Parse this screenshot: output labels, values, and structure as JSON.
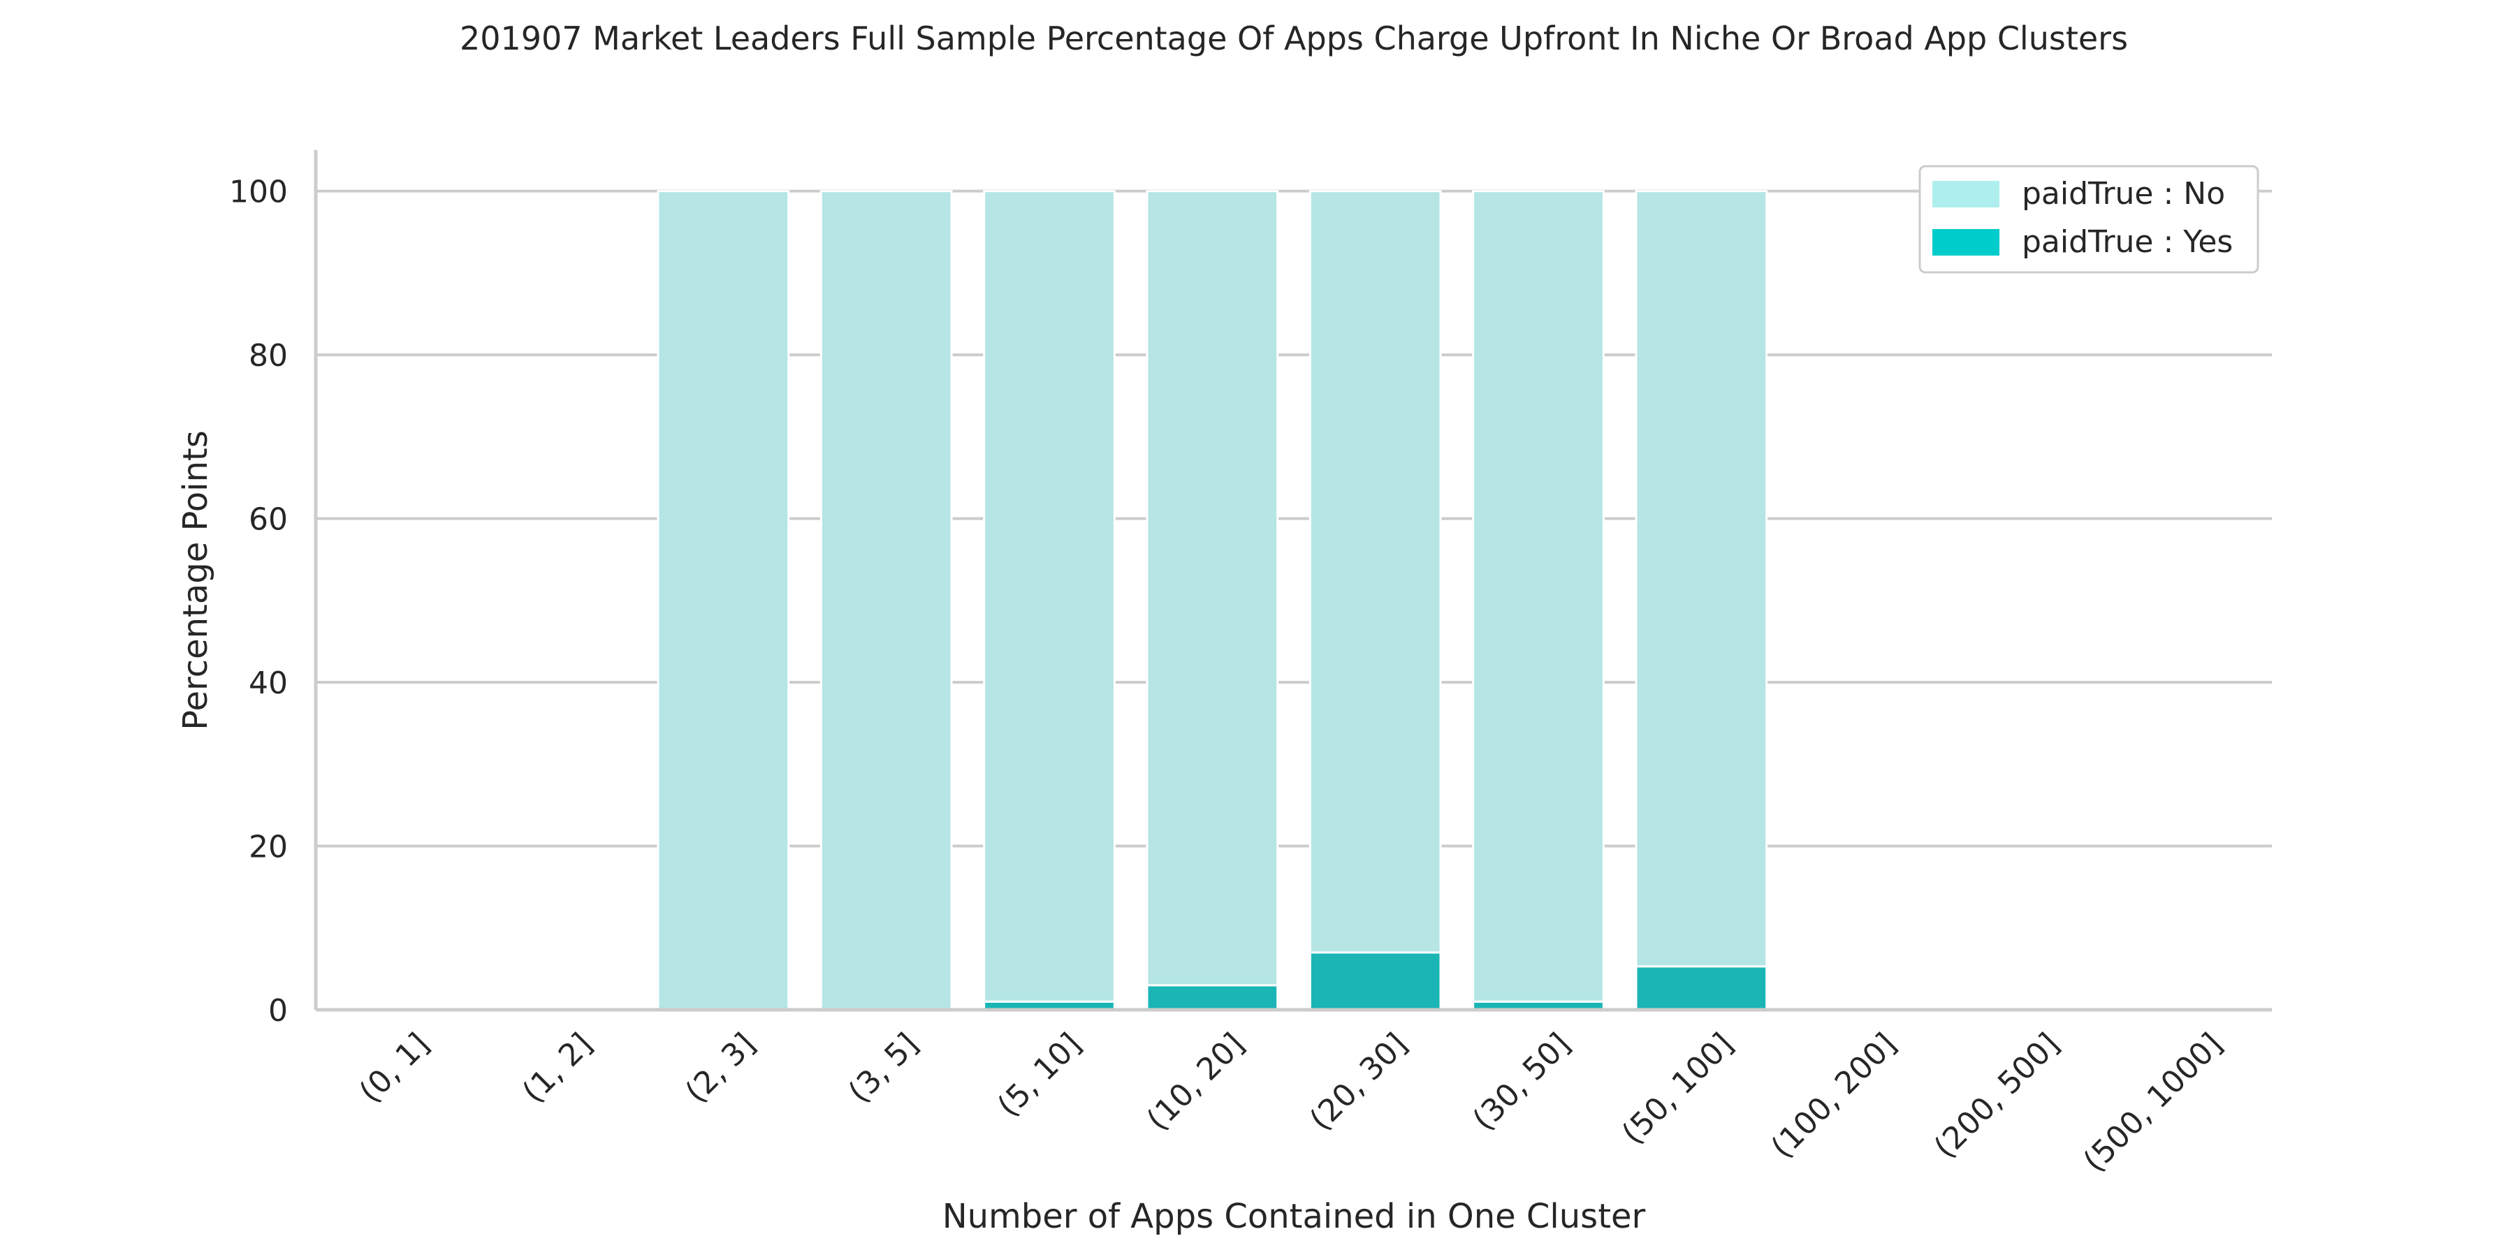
{
  "chart_data": {
    "type": "bar",
    "stacked": true,
    "title": "201907 Market Leaders Full Sample Percentage Of Apps Charge Upfront In Niche Or Broad App Clusters",
    "xlabel": "Number of Apps Contained in One Cluster",
    "ylabel": "Percentage Points",
    "ylim": [
      0,
      105
    ],
    "yticks": [
      0,
      20,
      40,
      60,
      80,
      100
    ],
    "grid": "horizontal",
    "legend_position": "top-right",
    "categories": [
      "(0, 1]",
      "(1, 2]",
      "(2, 3]",
      "(3, 5]",
      "(5, 10]",
      "(10, 20]",
      "(20, 30]",
      "(30, 50]",
      "(50, 100]",
      "(100, 200]",
      "(200, 500]",
      "(500, 1000]"
    ],
    "series": [
      {
        "name": "paidTrue : Yes",
        "color": "#1bb5b5",
        "legend_color": "#00cccc",
        "values": [
          0,
          0,
          0,
          0,
          1,
          3,
          7,
          1,
          5.3,
          0,
          0,
          0
        ]
      },
      {
        "name": "paidTrue : No",
        "color": "#b5e5e5",
        "legend_color": "#aeeeee",
        "values": [
          0,
          0,
          100,
          100,
          99,
          97,
          93,
          99,
          94.7,
          0,
          0,
          0
        ]
      }
    ]
  }
}
